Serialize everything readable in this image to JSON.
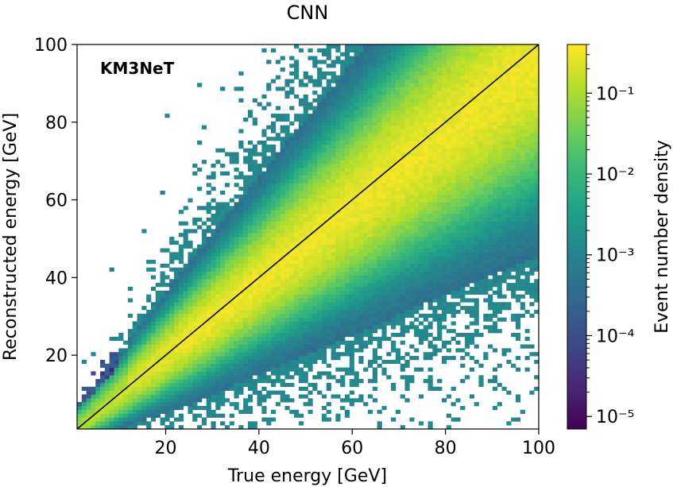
{
  "chart_data": {
    "type": "heatmap",
    "title": "CNN",
    "annotation": "KM3NeT",
    "xlabel": "True energy [GeV]",
    "ylabel": "Reconstructed energy [GeV]",
    "xlim": [
      1,
      100
    ],
    "ylim": [
      1,
      100
    ],
    "xticks": [
      20,
      40,
      60,
      80,
      100
    ],
    "yticks": [
      20,
      40,
      60,
      80,
      100
    ],
    "grid": false,
    "bins": 100,
    "reference_line": {
      "label": "y = x",
      "from": [
        1,
        1
      ],
      "to": [
        100,
        100
      ]
    },
    "colorbar": {
      "label": "Event number density",
      "scale": "log",
      "range": [
        7e-06,
        0.4
      ],
      "tick_values": [
        1e-05,
        0.0001,
        0.001,
        0.01,
        0.1
      ],
      "tick_labels": [
        "10⁻⁵",
        "10⁻⁴",
        "10⁻³",
        "10⁻²",
        "10⁻¹"
      ],
      "colormap": "viridis"
    },
    "density_model": {
      "description": "2D histogram concentrated along the diagonal; spread widens with energy; mean reconstructed energy slightly below true at high energy",
      "peak_density": 0.3,
      "min_density": 7e-06
    }
  },
  "colors": {
    "viridis": [
      "#440154",
      "#482878",
      "#3e4989",
      "#31688e",
      "#26828e",
      "#1f9e89",
      "#35b779",
      "#6ece58",
      "#b5de2b",
      "#fde725"
    ],
    "line": "#000000"
  }
}
